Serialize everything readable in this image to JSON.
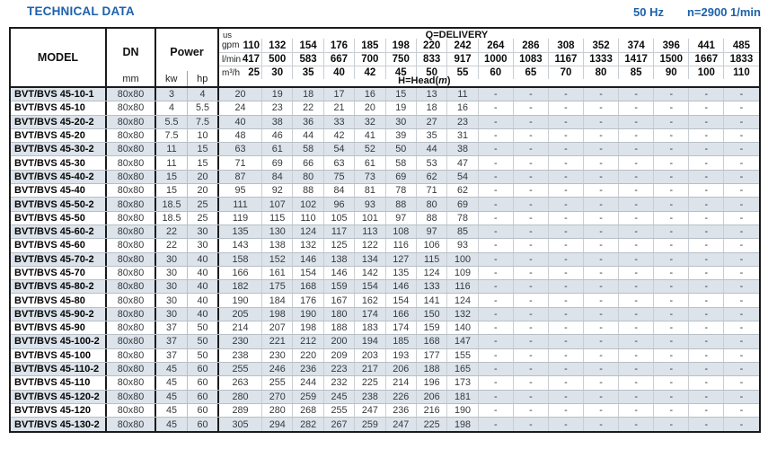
{
  "header": {
    "title": "TECHNICAL DATA",
    "frequency": "50 Hz",
    "speed": "n=2900 1/min"
  },
  "colors": {
    "accent_blue": "#1c61ac",
    "row_shade": "#dce3ea"
  },
  "table": {
    "model_header": "MODEL",
    "dn_header": "DN",
    "dn_unit": "mm",
    "power_header": "Power",
    "power_unit_kw": "kw",
    "power_unit_hp": "hp",
    "delivery_label": "Q=DELIVERY",
    "head_label_pre": "H=Head(",
    "head_label_unit": "m",
    "head_label_post": ")",
    "unit_us": "us",
    "unit_gpm": "gpm",
    "unit_lmin": "l/min",
    "unit_m3h": "m³/h",
    "gpm": [
      110,
      132,
      154,
      176,
      185,
      198,
      220,
      242,
      264,
      286,
      308,
      352,
      374,
      396,
      441,
      485
    ],
    "lmin": [
      417,
      500,
      583,
      667,
      700,
      750,
      833,
      917,
      1000,
      1083,
      1167,
      1333,
      1417,
      1500,
      1667,
      1833
    ],
    "m3h": [
      25,
      30,
      35,
      40,
      42,
      45,
      50,
      55,
      60,
      65,
      70,
      80,
      85,
      90,
      100,
      110
    ],
    "rows": [
      {
        "model": "BVT/BVS 45-10-1",
        "dn": "80x80",
        "kw": "3",
        "hp": "4",
        "heads": [
          20,
          19,
          18,
          17,
          16,
          15,
          13,
          11,
          "-",
          "-",
          "-",
          "-",
          "-",
          "-",
          "-",
          "-"
        ]
      },
      {
        "model": "BVT/BVS 45-10",
        "dn": "80x80",
        "kw": "4",
        "hp": "5.5",
        "heads": [
          24,
          23,
          22,
          21,
          20,
          19,
          18,
          16,
          "-",
          "-",
          "-",
          "-",
          "-",
          "-",
          "-",
          "-"
        ]
      },
      {
        "model": "BVT/BVS 45-20-2",
        "dn": "80x80",
        "kw": "5.5",
        "hp": "7.5",
        "heads": [
          40,
          38,
          36,
          33,
          32,
          30,
          27,
          23,
          "-",
          "-",
          "-",
          "-",
          "-",
          "-",
          "-",
          "-"
        ]
      },
      {
        "model": "BVT/BVS 45-20",
        "dn": "80x80",
        "kw": "7.5",
        "hp": "10",
        "heads": [
          48,
          46,
          44,
          42,
          41,
          39,
          35,
          31,
          "-",
          "-",
          "-",
          "-",
          "-",
          "-",
          "-",
          "-"
        ]
      },
      {
        "model": "BVT/BVS 45-30-2",
        "dn": "80x80",
        "kw": "11",
        "hp": "15",
        "heads": [
          63,
          61,
          58,
          54,
          52,
          50,
          44,
          38,
          "-",
          "-",
          "-",
          "-",
          "-",
          "-",
          "-",
          "-"
        ]
      },
      {
        "model": "BVT/BVS 45-30",
        "dn": "80x80",
        "kw": "11",
        "hp": "15",
        "heads": [
          71,
          69,
          66,
          63,
          61,
          58,
          53,
          47,
          "-",
          "-",
          "-",
          "-",
          "-",
          "-",
          "-",
          "-"
        ]
      },
      {
        "model": "BVT/BVS 45-40-2",
        "dn": "80x80",
        "kw": "15",
        "hp": "20",
        "heads": [
          87,
          84,
          80,
          75,
          73,
          69,
          62,
          54,
          "-",
          "-",
          "-",
          "-",
          "-",
          "-",
          "-",
          "-"
        ]
      },
      {
        "model": "BVT/BVS 45-40",
        "dn": "80x80",
        "kw": "15",
        "hp": "20",
        "heads": [
          95,
          92,
          88,
          84,
          81,
          78,
          71,
          62,
          "-",
          "-",
          "-",
          "-",
          "-",
          "-",
          "-",
          "-"
        ]
      },
      {
        "model": "BVT/BVS 45-50-2",
        "dn": "80x80",
        "kw": "18.5",
        "hp": "25",
        "heads": [
          111,
          107,
          102,
          96,
          93,
          88,
          80,
          69,
          "-",
          "-",
          "-",
          "-",
          "-",
          "-",
          "-",
          "-"
        ]
      },
      {
        "model": "BVT/BVS 45-50",
        "dn": "80x80",
        "kw": "18.5",
        "hp": "25",
        "heads": [
          119,
          115,
          110,
          105,
          101,
          97,
          88,
          78,
          "-",
          "-",
          "-",
          "-",
          "-",
          "-",
          "-",
          "-"
        ]
      },
      {
        "model": "BVT/BVS 45-60-2",
        "dn": "80x80",
        "kw": "22",
        "hp": "30",
        "heads": [
          135,
          130,
          124,
          117,
          113,
          108,
          97,
          85,
          "-",
          "-",
          "-",
          "-",
          "-",
          "-",
          "-",
          "-"
        ]
      },
      {
        "model": "BVT/BVS 45-60",
        "dn": "80x80",
        "kw": "22",
        "hp": "30",
        "heads": [
          143,
          138,
          132,
          125,
          122,
          116,
          106,
          93,
          "-",
          "-",
          "-",
          "-",
          "-",
          "-",
          "-",
          "-"
        ]
      },
      {
        "model": "BVT/BVS 45-70-2",
        "dn": "80x80",
        "kw": "30",
        "hp": "40",
        "heads": [
          158,
          152,
          146,
          138,
          134,
          127,
          115,
          100,
          "-",
          "-",
          "-",
          "-",
          "-",
          "-",
          "-",
          "-"
        ]
      },
      {
        "model": "BVT/BVS 45-70",
        "dn": "80x80",
        "kw": "30",
        "hp": "40",
        "heads": [
          166,
          161,
          154,
          146,
          142,
          135,
          124,
          109,
          "-",
          "-",
          "-",
          "-",
          "-",
          "-",
          "-",
          "-"
        ]
      },
      {
        "model": "BVT/BVS 45-80-2",
        "dn": "80x80",
        "kw": "30",
        "hp": "40",
        "heads": [
          182,
          175,
          168,
          159,
          154,
          146,
          133,
          116,
          "-",
          "-",
          "-",
          "-",
          "-",
          "-",
          "-",
          "-"
        ]
      },
      {
        "model": "BVT/BVS 45-80",
        "dn": "80x80",
        "kw": "30",
        "hp": "40",
        "heads": [
          190,
          184,
          176,
          167,
          162,
          154,
          141,
          124,
          "-",
          "-",
          "-",
          "-",
          "-",
          "-",
          "-",
          "-"
        ]
      },
      {
        "model": "BVT/BVS 45-90-2",
        "dn": "80x80",
        "kw": "30",
        "hp": "40",
        "heads": [
          205,
          198,
          190,
          180,
          174,
          166,
          150,
          132,
          "-",
          "-",
          "-",
          "-",
          "-",
          "-",
          "-",
          "-"
        ]
      },
      {
        "model": "BVT/BVS 45-90",
        "dn": "80x80",
        "kw": "37",
        "hp": "50",
        "heads": [
          214,
          207,
          198,
          188,
          183,
          174,
          159,
          140,
          "-",
          "-",
          "-",
          "-",
          "-",
          "-",
          "-",
          "-"
        ]
      },
      {
        "model": "BVT/BVS 45-100-2",
        "dn": "80x80",
        "kw": "37",
        "hp": "50",
        "heads": [
          230,
          221,
          212,
          200,
          194,
          185,
          168,
          147,
          "-",
          "-",
          "-",
          "-",
          "-",
          "-",
          "-",
          "-"
        ]
      },
      {
        "model": "BVT/BVS 45-100",
        "dn": "80x80",
        "kw": "37",
        "hp": "50",
        "heads": [
          238,
          230,
          220,
          209,
          203,
          193,
          177,
          155,
          "-",
          "-",
          "-",
          "-",
          "-",
          "-",
          "-",
          "-"
        ]
      },
      {
        "model": "BVT/BVS 45-110-2",
        "dn": "80x80",
        "kw": "45",
        "hp": "60",
        "heads": [
          255,
          246,
          236,
          223,
          217,
          206,
          188,
          165,
          "-",
          "-",
          "-",
          "-",
          "-",
          "-",
          "-",
          "-"
        ]
      },
      {
        "model": "BVT/BVS 45-110",
        "dn": "80x80",
        "kw": "45",
        "hp": "60",
        "heads": [
          263,
          255,
          244,
          232,
          225,
          214,
          196,
          173,
          "-",
          "-",
          "-",
          "-",
          "-",
          "-",
          "-",
          "-"
        ]
      },
      {
        "model": "BVT/BVS 45-120-2",
        "dn": "80x80",
        "kw": "45",
        "hp": "60",
        "heads": [
          280,
          270,
          259,
          245,
          238,
          226,
          206,
          181,
          "-",
          "-",
          "-",
          "-",
          "-",
          "-",
          "-",
          "-"
        ]
      },
      {
        "model": "BVT/BVS 45-120",
        "dn": "80x80",
        "kw": "45",
        "hp": "60",
        "heads": [
          289,
          280,
          268,
          255,
          247,
          236,
          216,
          190,
          "-",
          "-",
          "-",
          "-",
          "-",
          "-",
          "-",
          "-"
        ]
      },
      {
        "model": "BVT/BVS 45-130-2",
        "dn": "80x80",
        "kw": "45",
        "hp": "60",
        "heads": [
          305,
          294,
          282,
          267,
          259,
          247,
          225,
          198,
          "-",
          "-",
          "-",
          "-",
          "-",
          "-",
          "-",
          "-"
        ]
      }
    ]
  }
}
